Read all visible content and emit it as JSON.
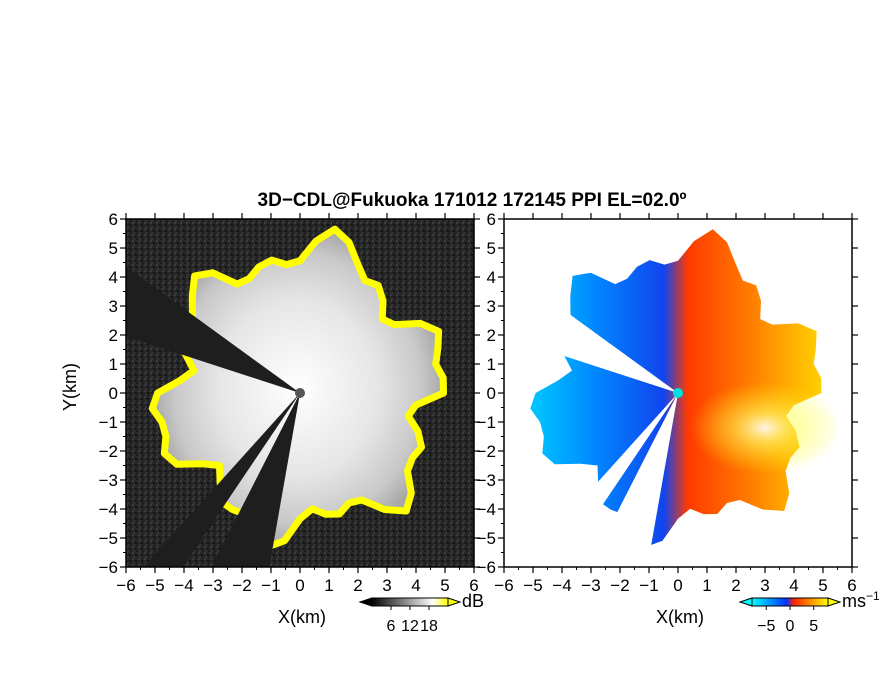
{
  "figure": {
    "title": "3D−CDL@Fukuoka 171012 172145 PPI EL=02.0º"
  },
  "chart_data": [
    {
      "type": "heatmap",
      "name": "backscatter-ppi",
      "xlabel": "X(km)",
      "ylabel": "Y(km)",
      "xlim": [
        -6,
        6
      ],
      "ylim": [
        -6,
        6
      ],
      "xticks": [
        -6,
        -5,
        -4,
        -3,
        -2,
        -1,
        0,
        1,
        2,
        3,
        4,
        5,
        6
      ],
      "yticks": [
        -6,
        -5,
        -4,
        -3,
        -2,
        -1,
        0,
        1,
        2,
        3,
        4,
        5,
        6
      ],
      "tick_labels": [
        "−6",
        "−5",
        "−4",
        "−3",
        "−2",
        "−1",
        "0",
        "1",
        "2",
        "3",
        "4",
        "5",
        "6"
      ],
      "colorbar": {
        "unit": "dB",
        "ticks": [
          6,
          12,
          18
        ],
        "tick_labels": [
          "6",
          "12",
          "18"
        ],
        "colors": [
          "#000000",
          "#ffffff",
          "#ffff00"
        ]
      },
      "blocked_sectors": [
        {
          "from_deg": 144,
          "to_deg": 162
        },
        {
          "from_deg": 228,
          "to_deg": 236
        },
        {
          "from_deg": 243,
          "to_deg": 260
        }
      ]
    },
    {
      "type": "heatmap",
      "name": "doppler-velocity-ppi",
      "xlabel": "X(km)",
      "xlim": [
        -6,
        6
      ],
      "ylim": [
        -6,
        6
      ],
      "xticks": [
        -6,
        -5,
        -4,
        -3,
        -2,
        -1,
        0,
        1,
        2,
        3,
        4,
        5,
        6
      ],
      "yticks": [
        -6,
        -5,
        -4,
        -3,
        -2,
        -1,
        0,
        1,
        2,
        3,
        4,
        5,
        6
      ],
      "tick_labels": [
        "−6",
        "−5",
        "−4",
        "−3",
        "−2",
        "−1",
        "0",
        "1",
        "2",
        "3",
        "4",
        "5",
        "6"
      ],
      "colorbar": {
        "unit": "ms",
        "unit_exp": "−1",
        "ticks": [
          -5,
          0,
          5
        ],
        "tick_labels": [
          "−5",
          "0",
          "5"
        ],
        "colors": [
          "#00ffff",
          "#0066ff",
          "#ff3300",
          "#ffff00"
        ]
      }
    }
  ]
}
